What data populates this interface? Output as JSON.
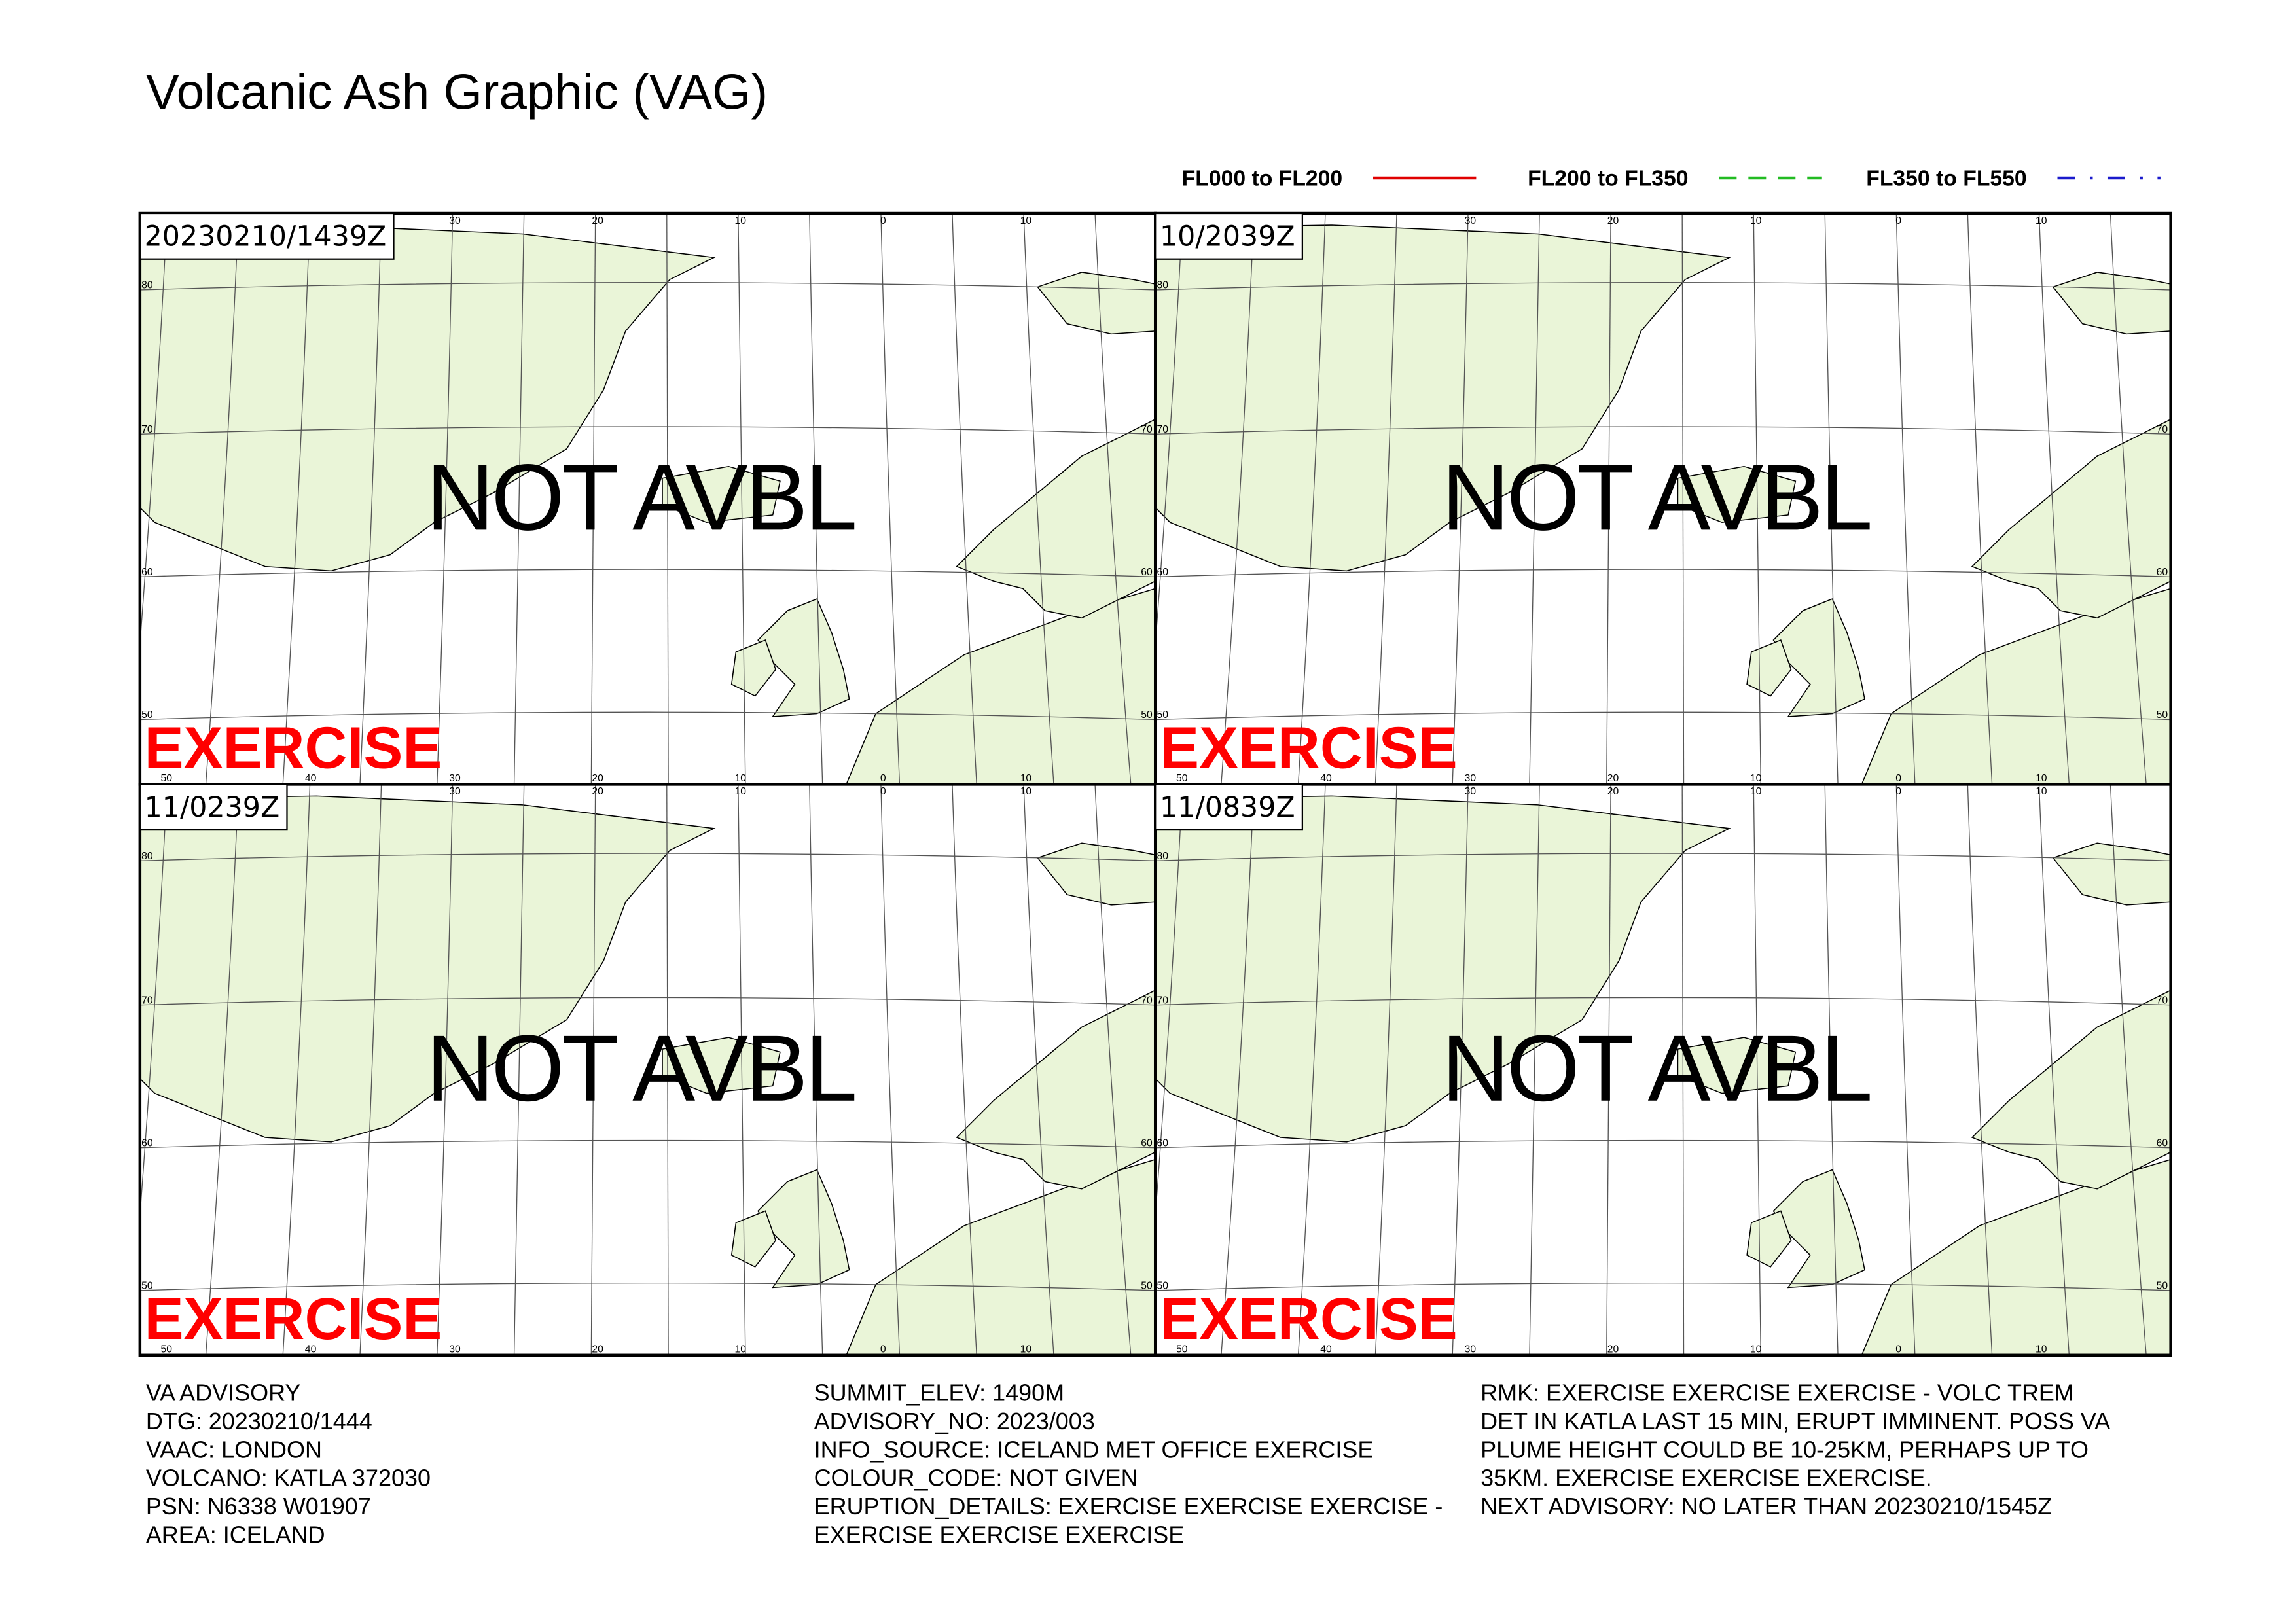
{
  "header": {
    "title": "Volcanic Ash Graphic (VAG)"
  },
  "legend": [
    {
      "label": "FL000 to FL200",
      "color": "#e00000"
    },
    {
      "label": "FL200 to FL350",
      "color": "#22bb22"
    },
    {
      "label": "FL350 to FL550",
      "color": "#1a1acc"
    }
  ],
  "panels": [
    {
      "time": "20230210/1439Z",
      "status": "NOT AVBL",
      "watermark": "EXERCISE"
    },
    {
      "time": "10/2039Z",
      "status": "NOT AVBL",
      "watermark": "EXERCISE"
    },
    {
      "time": "11/0239Z",
      "status": "NOT AVBL",
      "watermark": "EXERCISE"
    },
    {
      "time": "11/0839Z",
      "status": "NOT AVBL",
      "watermark": "EXERCISE"
    }
  ],
  "map_grid": {
    "top_lon_labels": [
      "30",
      "20",
      "10",
      "0",
      "10"
    ],
    "bottom_lon_labels": [
      "50",
      "40",
      "30",
      "20",
      "10",
      "0",
      "10"
    ],
    "lat_labels": [
      "80",
      "70",
      "60",
      "50"
    ]
  },
  "advisory": {
    "columns": [
      [
        "VA ADVISORY",
        "DTG: 20230210/1444",
        "VAAC: LONDON",
        "VOLCANO: KATLA 372030",
        "PSN: N6338 W01907",
        "AREA: ICELAND"
      ],
      [
        "SUMMIT_ELEV: 1490M",
        "ADVISORY_NO: 2023/003",
        "INFO_SOURCE: ICELAND MET OFFICE EXERCISE",
        "COLOUR_CODE: NOT GIVEN",
        "ERUPTION_DETAILS: EXERCISE EXERCISE EXERCISE -",
        "EXERCISE EXERCISE EXERCISE"
      ],
      [
        "RMK: EXERCISE EXERCISE EXERCISE - VOLC TREM",
        "DET IN KATLA LAST 15 MIN, ERUPT IMMINENT. POSS VA",
        "PLUME HEIGHT COULD BE 10-25KM, PERHAPS UP TO",
        "35KM. EXERCISE EXERCISE EXERCISE.",
        "NEXT ADVISORY: NO LATER THAN 20230210/1545Z"
      ]
    ]
  }
}
